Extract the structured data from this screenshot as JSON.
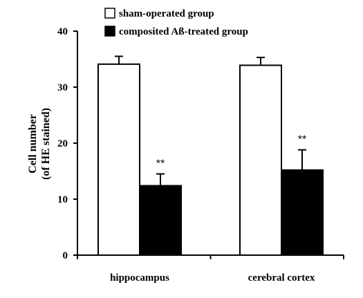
{
  "chart_data": {
    "type": "bar",
    "categories": [
      "hippocampus",
      "cerebral cortex"
    ],
    "series": [
      {
        "name": "sham-operated group",
        "color": "#ffffff",
        "values": [
          34.1,
          33.9
        ],
        "errors": [
          1.4,
          1.4
        ],
        "annotations": [
          "",
          ""
        ]
      },
      {
        "name": "composited Aß-treated group",
        "color": "#000000",
        "values": [
          12.4,
          15.2
        ],
        "errors": [
          2.1,
          3.6
        ],
        "annotations": [
          "**",
          "**"
        ]
      }
    ],
    "ylabel_lines": [
      "Cell number",
      "(of HE stained)"
    ],
    "yticks": [
      "0",
      "10",
      "20",
      "30",
      "40"
    ],
    "ylim": [
      0,
      40
    ],
    "legend_position": "top-center",
    "grid": false
  }
}
